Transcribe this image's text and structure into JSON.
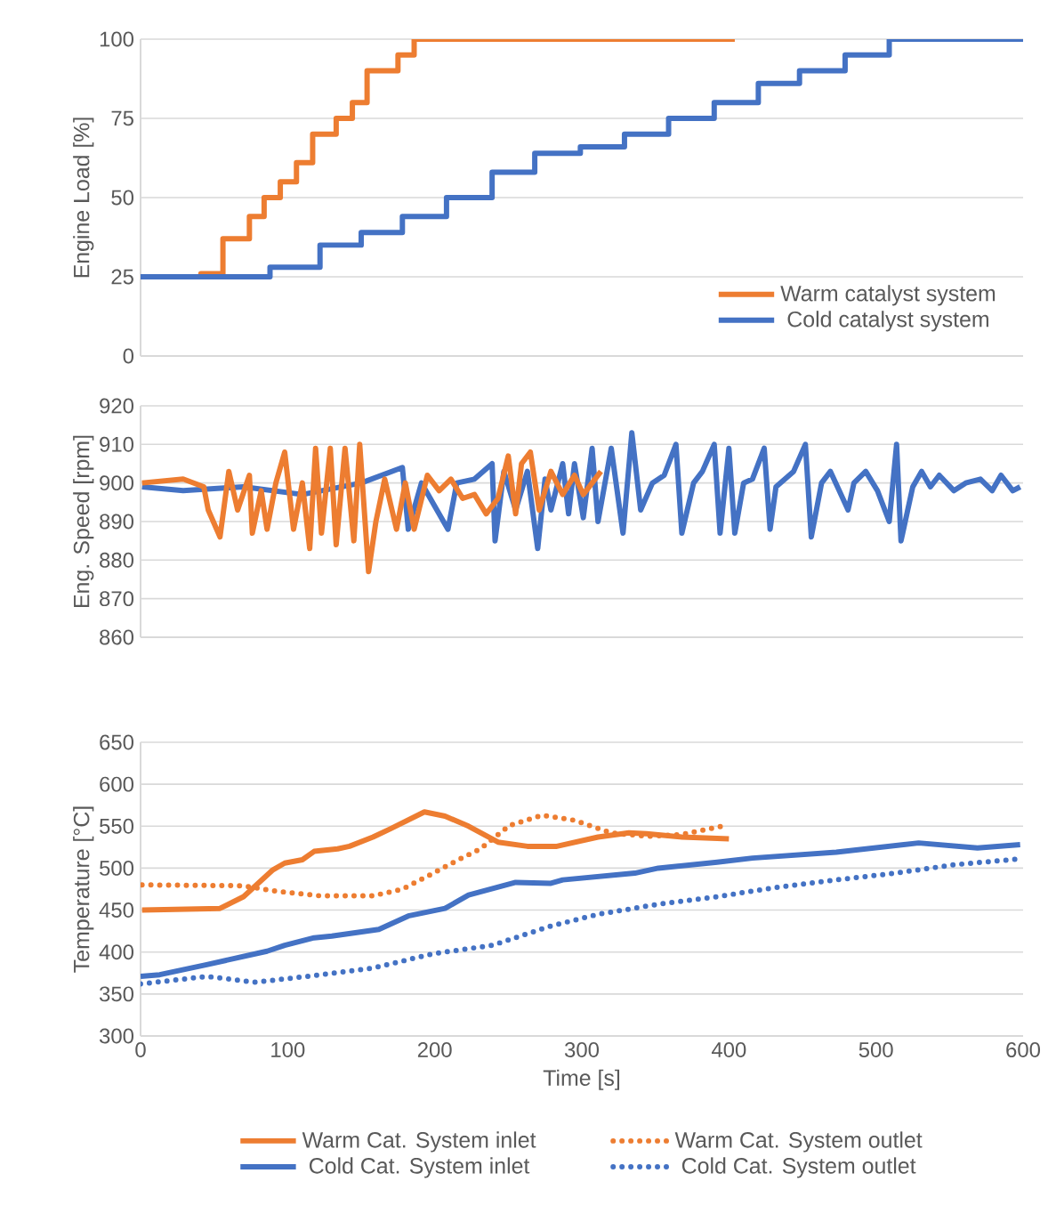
{
  "chart_data": [
    {
      "type": "step",
      "ylabel": "Engine Load [%]",
      "xlim": [
        0,
        600
      ],
      "xticks": [
        0,
        100,
        200,
        300,
        400,
        500,
        600
      ],
      "ylim": [
        0,
        100
      ],
      "yticks": [
        0,
        25,
        50,
        75,
        100
      ],
      "grid": "y",
      "legend": "bottom right",
      "tick_labels": "y",
      "series": [
        {
          "name": "Warm catalyst system",
          "color": "#ed7d31",
          "x": [
            0,
            41,
            56,
            74,
            84,
            95,
            106,
            117,
            133,
            144,
            154,
            175,
            186,
            404
          ],
          "values": [
            25,
            26,
            37,
            44,
            50,
            55,
            61,
            70,
            75,
            80,
            90,
            95,
            100,
            100
          ]
        },
        {
          "name": "Cold catalyst system",
          "color": "#4472c4",
          "x": [
            0,
            88,
            122,
            150,
            178,
            208,
            239,
            268,
            299,
            329,
            359,
            390,
            420,
            448,
            479,
            509,
            600
          ],
          "values": [
            25,
            28,
            35,
            39,
            44,
            50,
            58,
            64,
            66,
            70,
            75,
            80,
            86,
            90,
            95,
            100,
            100
          ]
        }
      ]
    },
    {
      "type": "line",
      "ylabel": "Eng. Speed [rpm]",
      "xlim": [
        0,
        600
      ],
      "xticks": [
        0,
        100,
        200,
        300,
        400,
        500,
        600
      ],
      "ylim": [
        860,
        920
      ],
      "yticks": [
        860,
        870,
        880,
        890,
        900,
        910,
        920
      ],
      "grid": "y",
      "tick_labels": "y",
      "series": [
        {
          "color": "#4472c4",
          "x": [
            1,
            29,
            70,
            110,
            150,
            178,
            182,
            191,
            209,
            215,
            227,
            239,
            241,
            247,
            255,
            263,
            270,
            275,
            279,
            287,
            291,
            295,
            301,
            307,
            311,
            320,
            328,
            334,
            340,
            348,
            356,
            364,
            368,
            376,
            382,
            390,
            394,
            400,
            404,
            410,
            416,
            424,
            428,
            432,
            444,
            452,
            456,
            463,
            469,
            475,
            481,
            485,
            493,
            501,
            509,
            514,
            517,
            525,
            531,
            537,
            543,
            553,
            561,
            571,
            579,
            585,
            593,
            598
          ],
          "values": [
            899,
            898,
            899,
            897,
            900,
            904,
            888,
            900,
            888,
            900,
            901,
            905,
            885,
            903,
            893,
            903,
            883,
            901,
            893,
            905,
            892,
            905,
            891,
            909,
            890,
            909,
            887,
            913,
            893,
            900,
            902,
            910,
            887,
            900,
            903,
            910,
            887,
            909,
            887,
            900,
            901,
            909,
            888,
            899,
            903,
            910,
            886,
            900,
            903,
            898,
            893,
            900,
            903,
            898,
            890,
            910,
            885,
            899,
            903,
            899,
            902,
            898,
            900,
            901,
            898,
            902,
            898,
            899
          ]
        },
        {
          "color": "#ed7d31",
          "x": [
            1,
            29,
            43,
            46,
            54,
            60,
            66,
            74,
            76,
            82,
            86,
            92,
            98,
            104,
            110,
            115,
            119,
            123,
            129,
            133,
            139,
            145,
            149,
            155,
            160,
            166,
            174,
            180,
            186,
            195,
            203,
            211,
            219,
            227,
            235,
            243,
            250,
            255,
            259,
            265,
            271,
            279,
            287,
            295,
            301,
            307,
            313
          ],
          "values": [
            900,
            901,
            899,
            893,
            886,
            903,
            893,
            902,
            887,
            898,
            888,
            900,
            908,
            888,
            900,
            883,
            909,
            887,
            909,
            884,
            909,
            885,
            910,
            877,
            890,
            901,
            888,
            900,
            888,
            902,
            898,
            901,
            896,
            897,
            892,
            896,
            907,
            892,
            905,
            908,
            893,
            903,
            897,
            902,
            897,
            900,
            903
          ]
        }
      ]
    },
    {
      "type": "line",
      "ylabel": "Temperature [°C]",
      "xlabel": "Time [s]",
      "xlim": [
        0,
        600
      ],
      "xticks": [
        0,
        100,
        200,
        300,
        400,
        500,
        600
      ],
      "ylim": [
        300,
        650
      ],
      "yticks": [
        300,
        350,
        400,
        450,
        500,
        550,
        600,
        650
      ],
      "grid": "y",
      "legend": "bottom",
      "series": [
        {
          "name": "Warm Cat. System inlet",
          "color": "#ed7d31",
          "line_style": "solid",
          "x": [
            1,
            54,
            70,
            90,
            98,
            110,
            118,
            134,
            142,
            158,
            170,
            193,
            207,
            223,
            243,
            263,
            283,
            311,
            332,
            344,
            368,
            400
          ],
          "values": [
            450,
            452,
            466,
            498,
            506,
            510,
            520,
            523,
            526,
            537,
            547,
            567,
            562,
            550,
            531,
            526,
            526,
            537,
            542,
            541,
            537,
            535
          ]
        },
        {
          "name": "Warm Cat. System outlet",
          "color": "#ed7d31",
          "line_style": "dotted",
          "x": [
            1,
            70,
            90,
            122,
            158,
            178,
            199,
            215,
            231,
            251,
            273,
            295,
            320,
            344,
            368,
            398
          ],
          "values": [
            480,
            479,
            473,
            467,
            467,
            475,
            494,
            509,
            523,
            551,
            563,
            557,
            542,
            538,
            540,
            551
          ]
        },
        {
          "name": "Cold Cat. System inlet",
          "color": "#4472c4",
          "line_style": "solid",
          "x": [
            0,
            13,
            45,
            86,
            98,
            118,
            130,
            162,
            182,
            207,
            223,
            255,
            279,
            287,
            336,
            352,
            392,
            416,
            473,
            529,
            569,
            598
          ],
          "values": [
            371,
            373,
            385,
            401,
            408,
            417,
            419,
            427,
            443,
            452,
            468,
            483,
            482,
            486,
            494,
            500,
            507,
            512,
            519,
            530,
            524,
            528
          ]
        },
        {
          "name": "Cold Cat. System outlet",
          "color": "#4472c4",
          "line_style": "dotted",
          "x": [
            0,
            45,
            78,
            118,
            158,
            199,
            239,
            279,
            311,
            352,
            392,
            432,
            473,
            513,
            553,
            598
          ],
          "values": [
            362,
            371,
            364,
            372,
            381,
            398,
            408,
            431,
            445,
            457,
            466,
            477,
            486,
            494,
            504,
            511
          ]
        }
      ]
    }
  ]
}
